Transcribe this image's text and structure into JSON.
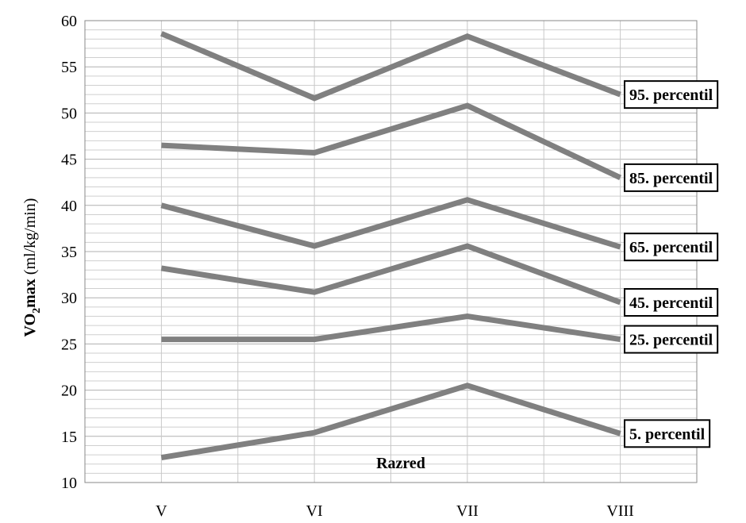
{
  "chart_data": {
    "type": "line",
    "categories": [
      "V",
      "VI",
      "VII",
      "VIII"
    ],
    "ylabel": {
      "main": "VO",
      "sub": "2",
      "bold_rest": "max",
      "unit": " (ml/kg/min)"
    },
    "annotation": "Razred",
    "ylim": [
      10,
      60
    ],
    "yticks": [
      10,
      15,
      20,
      25,
      30,
      35,
      40,
      45,
      50,
      55,
      60
    ],
    "minor_step": 1,
    "grid": true,
    "line_color": "#808080",
    "series": [
      {
        "name": "95. percentil",
        "values": [
          58.6,
          51.6,
          58.3,
          52.0
        ]
      },
      {
        "name": "85. percentil",
        "values": [
          46.5,
          45.7,
          50.8,
          43.0
        ]
      },
      {
        "name": "65. percentil",
        "values": [
          40.0,
          35.6,
          40.6,
          35.5
        ]
      },
      {
        "name": "45. percentil",
        "values": [
          33.2,
          30.6,
          35.6,
          29.5
        ]
      },
      {
        "name": "25. percentil",
        "values": [
          25.5,
          25.5,
          28.0,
          25.5
        ]
      },
      {
        "name": "5. percentil",
        "values": [
          12.7,
          15.4,
          20.5,
          15.3
        ]
      }
    ]
  }
}
